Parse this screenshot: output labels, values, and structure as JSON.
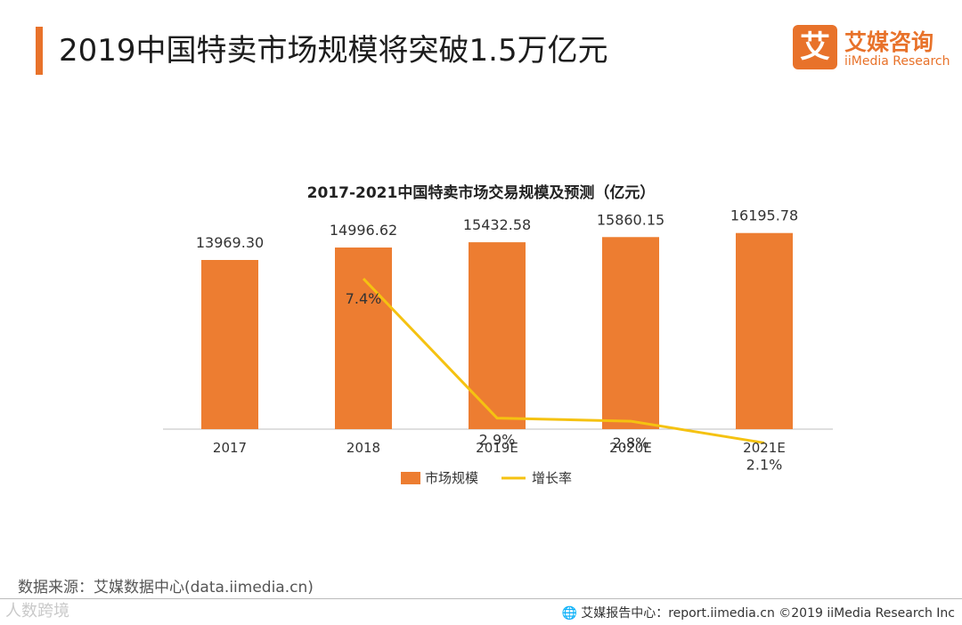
{
  "header": {
    "title": "2019中国特卖市场规模将突破1.5万亿元"
  },
  "logo": {
    "mark": "艾",
    "name_cn": "艾媒咨询",
    "name_en": "iiMedia Research"
  },
  "colors": {
    "accent": "#e8722a",
    "bar": "#ed7d31",
    "line": "#f5c211"
  },
  "chart_data": {
    "type": "bar",
    "title": "2017-2021中国特卖市场交易规模及预测（亿元）",
    "categories": [
      "2017",
      "2018",
      "2019E",
      "2020E",
      "2021E"
    ],
    "series": [
      {
        "name": "市场规模",
        "type": "bar",
        "values": [
          13969.3,
          14996.62,
          15432.58,
          15860.15,
          16195.78
        ],
        "labels": [
          "13969.30",
          "14996.62",
          "15432.58",
          "15860.15",
          "16195.78"
        ]
      },
      {
        "name": "增长率",
        "type": "line",
        "values": [
          null,
          7.4,
          2.9,
          2.8,
          2.1
        ],
        "labels": [
          "",
          "7.4%",
          "2.9%",
          "2.8%",
          "2.1%"
        ]
      }
    ],
    "legend": "bottom",
    "grid": false
  },
  "footer": {
    "source": "数据来源：艾媒数据中心(data.iimedia.cn)",
    "report": "艾媒报告中心：report.iimedia.cn  ©2019  iiMedia Research  Inc",
    "report_icon": "globe-icon",
    "watermark": "人数跨境"
  }
}
